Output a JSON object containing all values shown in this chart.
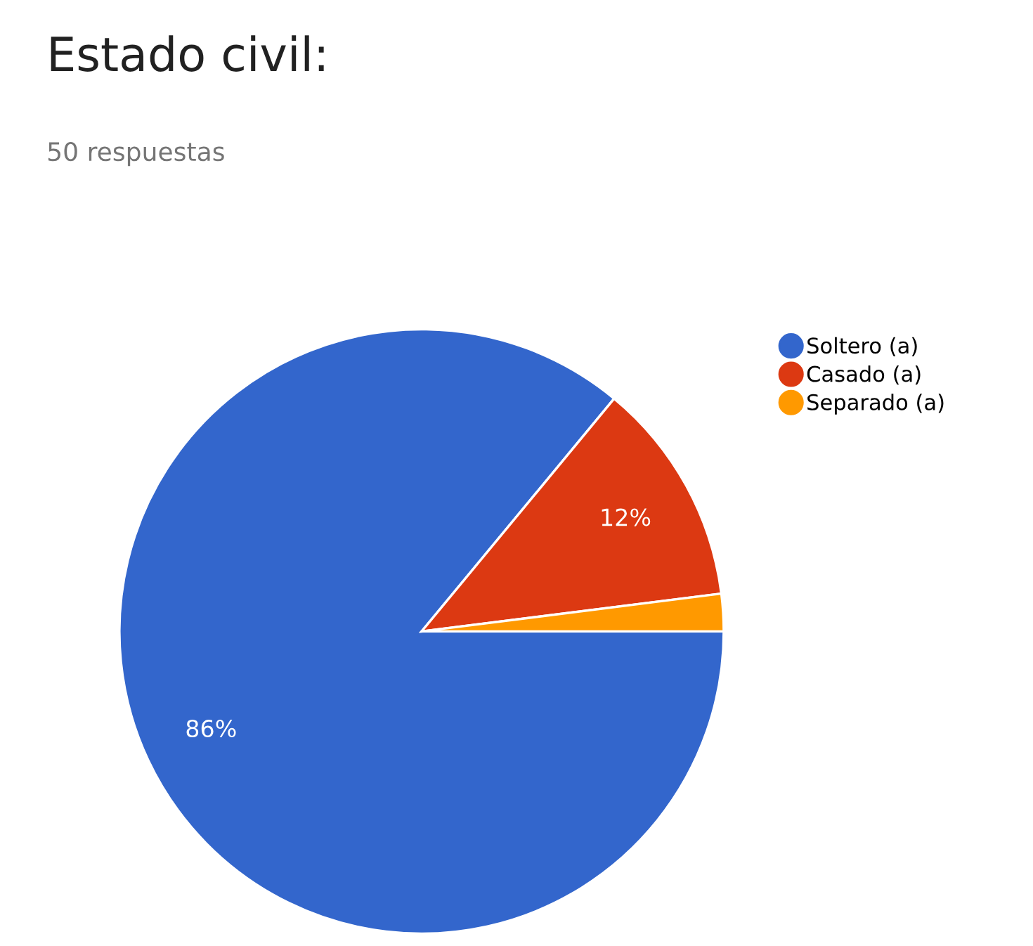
{
  "chart_data": {
    "type": "pie",
    "title": "Estado civil:",
    "subtitle": "50 respuestas",
    "categories": [
      "Soltero (a)",
      "Casado (a)",
      "Separado (a)"
    ],
    "values": [
      86,
      12,
      2
    ],
    "colors": [
      "#3366cc",
      "#dc3912",
      "#ff9900"
    ],
    "value_labels": [
      "86%",
      "12%",
      null
    ],
    "legend": "top right"
  }
}
